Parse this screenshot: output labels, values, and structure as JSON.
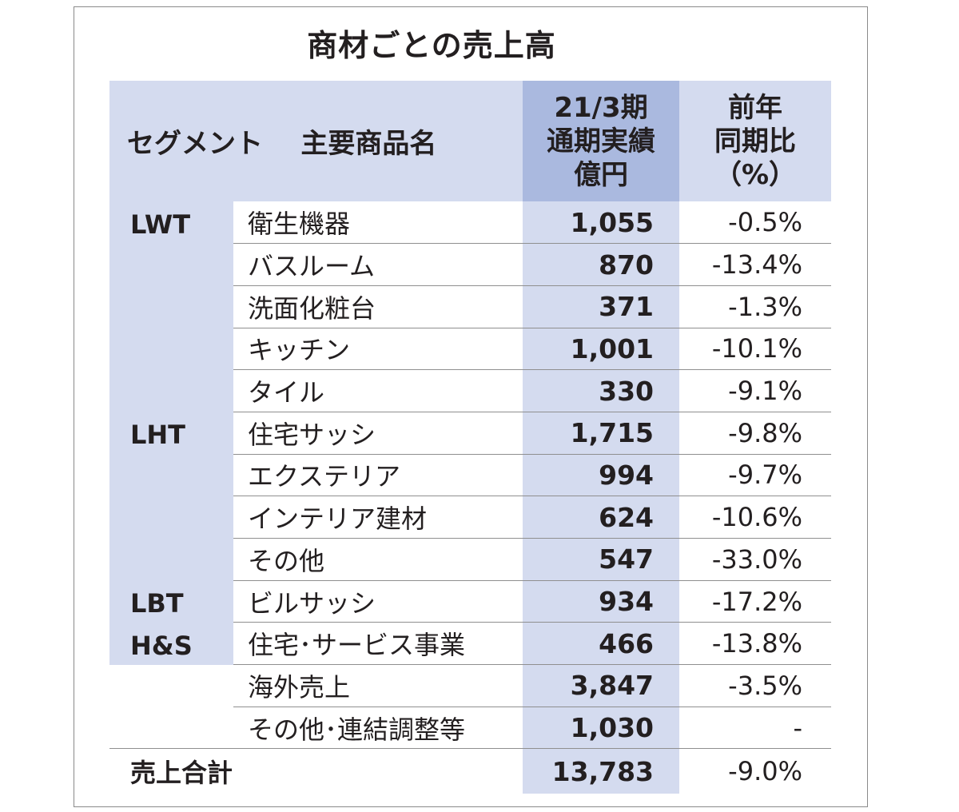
{
  "chart_data": {
    "type": "table",
    "title": "商材ごとの売上高",
    "headers": {
      "segment": "セグメント",
      "product": "主要商品名",
      "value_lines": [
        "21/3期",
        "通期実績",
        "億円"
      ],
      "yoy_lines": [
        "前年",
        "同期比",
        "（%）"
      ]
    },
    "groups": [
      {
        "segment": "LWT",
        "rows": [
          {
            "product": "衛生機器",
            "value": "1,055",
            "yoy": "-0.5%"
          },
          {
            "product": "バスルーム",
            "value": "870",
            "yoy": "-13.4%"
          },
          {
            "product": "洗面化粧台",
            "value": "371",
            "yoy": "-1.3%"
          },
          {
            "product": "キッチン",
            "value": "1,001",
            "yoy": "-10.1%"
          },
          {
            "product": "タイル",
            "value": "330",
            "yoy": "-9.1%"
          }
        ]
      },
      {
        "segment": "LHT",
        "rows": [
          {
            "product": "住宅サッシ",
            "value": "1,715",
            "yoy": "-9.8%"
          },
          {
            "product": "エクステリア",
            "value": "994",
            "yoy": "-9.7%"
          },
          {
            "product": "インテリア建材",
            "value": "624",
            "yoy": "-10.6%"
          },
          {
            "product": "その他",
            "value": "547",
            "yoy": "-33.0%"
          }
        ]
      },
      {
        "segment": "LBT",
        "rows": [
          {
            "product": "ビルサッシ",
            "value": "934",
            "yoy": "-17.2%"
          }
        ]
      },
      {
        "segment": "H&S",
        "rows": [
          {
            "product": "住宅･サービス事業",
            "value": "466",
            "yoy": "-13.8%"
          }
        ]
      },
      {
        "segment": "",
        "rows": [
          {
            "product": "海外売上",
            "value": "3,847",
            "yoy": "-3.5%"
          },
          {
            "product": "その他･連結調整等",
            "value": "1,030",
            "yoy": "-"
          }
        ]
      }
    ],
    "total": {
      "label": "売上合計",
      "value": "13,783",
      "yoy": "-9.0%"
    }
  }
}
